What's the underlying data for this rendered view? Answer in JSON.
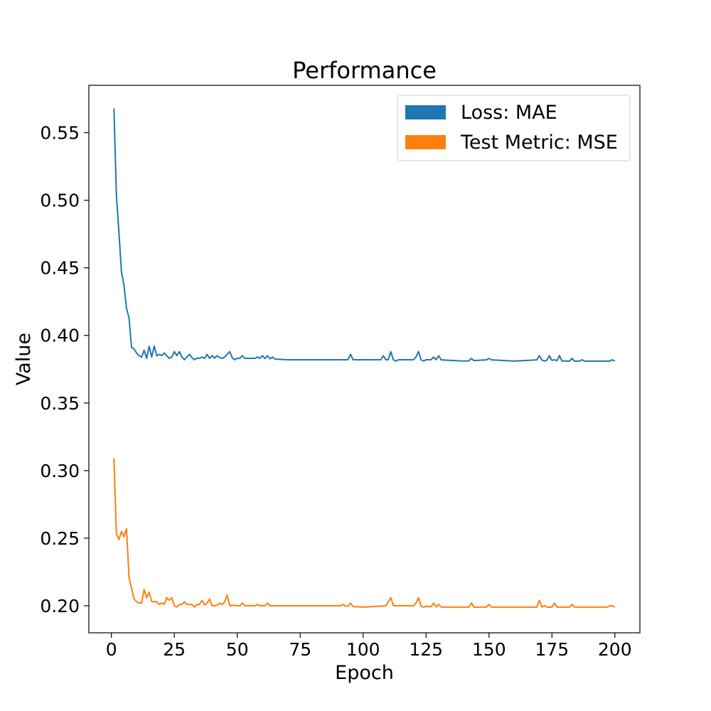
{
  "chart_data": {
    "type": "line",
    "title": "Performance",
    "xlabel": "Epoch",
    "ylabel": "Value",
    "xlim": [
      -8.95,
      209.95
    ],
    "ylim": [
      0.18,
      0.585
    ],
    "xticks": [
      0,
      25,
      50,
      75,
      100,
      125,
      150,
      175,
      200
    ],
    "yticks": [
      0.2,
      0.25,
      0.3,
      0.35,
      0.4,
      0.45,
      0.5,
      0.55
    ],
    "xtick_labels": [
      "0",
      "25",
      "50",
      "75",
      "100",
      "125",
      "150",
      "175",
      "200"
    ],
    "ytick_labels": [
      "0.20",
      "0.25",
      "0.30",
      "0.35",
      "0.40",
      "0.45",
      "0.50",
      "0.55"
    ],
    "grid": false,
    "legend": "top-right",
    "series": [
      {
        "name": "Loss: MAE",
        "color": "#1f77b4",
        "anchors": [
          [
            1,
            0.568
          ],
          [
            2,
            0.503
          ],
          [
            3,
            0.476
          ],
          [
            4,
            0.447
          ],
          [
            5,
            0.437
          ],
          [
            6,
            0.42
          ],
          [
            7,
            0.413
          ],
          [
            8,
            0.391
          ],
          [
            9,
            0.39
          ],
          [
            10,
            0.387
          ],
          [
            11,
            0.385
          ],
          [
            12,
            0.384
          ],
          [
            13,
            0.389
          ],
          [
            14,
            0.383
          ],
          [
            15,
            0.392
          ],
          [
            16,
            0.384
          ],
          [
            17,
            0.392
          ],
          [
            18,
            0.385
          ],
          [
            19,
            0.386
          ],
          [
            20,
            0.385
          ],
          [
            22,
            0.385
          ],
          [
            24,
            0.384
          ],
          [
            26,
            0.385
          ],
          [
            28,
            0.384
          ],
          [
            30,
            0.384
          ],
          [
            35,
            0.383
          ],
          [
            40,
            0.383
          ],
          [
            45,
            0.384
          ],
          [
            50,
            0.383
          ],
          [
            60,
            0.383
          ],
          [
            70,
            0.382
          ],
          [
            80,
            0.382
          ],
          [
            90,
            0.382
          ],
          [
            100,
            0.382
          ],
          [
            110,
            0.382
          ],
          [
            120,
            0.382
          ],
          [
            130,
            0.382
          ],
          [
            140,
            0.381
          ],
          [
            150,
            0.382
          ],
          [
            160,
            0.381
          ],
          [
            170,
            0.382
          ],
          [
            180,
            0.381
          ],
          [
            190,
            0.381
          ],
          [
            200,
            0.381
          ]
        ],
        "spikes": [
          [
            21,
            0.387
          ],
          [
            23,
            0.383
          ],
          [
            25,
            0.388
          ],
          [
            27,
            0.388
          ],
          [
            29,
            0.382
          ],
          [
            31,
            0.386
          ],
          [
            33,
            0.382
          ],
          [
            36,
            0.384
          ],
          [
            38,
            0.386
          ],
          [
            40,
            0.385
          ],
          [
            42,
            0.385
          ],
          [
            44,
            0.383
          ],
          [
            46,
            0.386
          ],
          [
            47,
            0.388
          ],
          [
            49,
            0.382
          ],
          [
            52,
            0.385
          ],
          [
            58,
            0.384
          ],
          [
            60,
            0.385
          ],
          [
            62,
            0.385
          ],
          [
            64,
            0.384
          ],
          [
            95,
            0.386
          ],
          [
            108,
            0.385
          ],
          [
            111,
            0.388
          ],
          [
            113,
            0.381
          ],
          [
            121,
            0.384
          ],
          [
            122,
            0.388
          ],
          [
            124,
            0.381
          ],
          [
            128,
            0.384
          ],
          [
            130,
            0.385
          ],
          [
            143,
            0.383
          ],
          [
            150,
            0.383
          ],
          [
            170,
            0.385
          ],
          [
            172,
            0.381
          ],
          [
            174,
            0.385
          ],
          [
            176,
            0.382
          ],
          [
            178,
            0.385
          ],
          [
            183,
            0.383
          ],
          [
            187,
            0.382
          ],
          [
            199,
            0.382
          ]
        ]
      },
      {
        "name": "Test Metric: MSE",
        "color": "#ff7f0e",
        "anchors": [
          [
            1,
            0.309
          ],
          [
            2,
            0.253
          ],
          [
            3,
            0.249
          ],
          [
            4,
            0.255
          ],
          [
            5,
            0.251
          ],
          [
            6,
            0.257
          ],
          [
            7,
            0.221
          ],
          [
            8,
            0.213
          ],
          [
            9,
            0.205
          ],
          [
            10,
            0.203
          ],
          [
            11,
            0.202
          ],
          [
            12,
            0.202
          ],
          [
            13,
            0.212
          ],
          [
            14,
            0.206
          ],
          [
            15,
            0.21
          ],
          [
            16,
            0.203
          ],
          [
            17,
            0.203
          ],
          [
            18,
            0.203
          ],
          [
            19,
            0.201
          ],
          [
            20,
            0.202
          ],
          [
            22,
            0.202
          ],
          [
            24,
            0.201
          ],
          [
            26,
            0.201
          ],
          [
            28,
            0.201
          ],
          [
            30,
            0.201
          ],
          [
            35,
            0.201
          ],
          [
            40,
            0.2
          ],
          [
            45,
            0.201
          ],
          [
            50,
            0.2
          ],
          [
            60,
            0.2
          ],
          [
            70,
            0.2
          ],
          [
            80,
            0.2
          ],
          [
            90,
            0.2
          ],
          [
            100,
            0.199
          ],
          [
            110,
            0.2
          ],
          [
            120,
            0.2
          ],
          [
            130,
            0.199
          ],
          [
            140,
            0.199
          ],
          [
            150,
            0.199
          ],
          [
            160,
            0.199
          ],
          [
            170,
            0.199
          ],
          [
            180,
            0.199
          ],
          [
            190,
            0.199
          ],
          [
            200,
            0.199
          ]
        ],
        "spikes": [
          [
            21,
            0.201
          ],
          [
            22,
            0.206
          ],
          [
            23,
            0.204
          ],
          [
            24,
            0.206
          ],
          [
            25,
            0.2
          ],
          [
            26,
            0.199
          ],
          [
            29,
            0.203
          ],
          [
            31,
            0.201
          ],
          [
            33,
            0.199
          ],
          [
            36,
            0.204
          ],
          [
            38,
            0.202
          ],
          [
            39,
            0.205
          ],
          [
            41,
            0.2
          ],
          [
            43,
            0.202
          ],
          [
            45,
            0.203
          ],
          [
            46,
            0.208
          ],
          [
            47,
            0.2
          ],
          [
            52,
            0.202
          ],
          [
            58,
            0.201
          ],
          [
            62,
            0.202
          ],
          [
            92,
            0.201
          ],
          [
            95,
            0.202
          ],
          [
            108,
            0.2
          ],
          [
            110,
            0.203
          ],
          [
            111,
            0.206
          ],
          [
            113,
            0.2
          ],
          [
            121,
            0.202
          ],
          [
            122,
            0.206
          ],
          [
            124,
            0.199
          ],
          [
            128,
            0.202
          ],
          [
            130,
            0.201
          ],
          [
            143,
            0.202
          ],
          [
            150,
            0.201
          ],
          [
            170,
            0.204
          ],
          [
            172,
            0.2
          ],
          [
            176,
            0.202
          ],
          [
            178,
            0.199
          ],
          [
            183,
            0.201
          ],
          [
            194,
            0.199
          ],
          [
            198,
            0.2
          ],
          [
            199,
            0.2
          ]
        ]
      }
    ]
  }
}
